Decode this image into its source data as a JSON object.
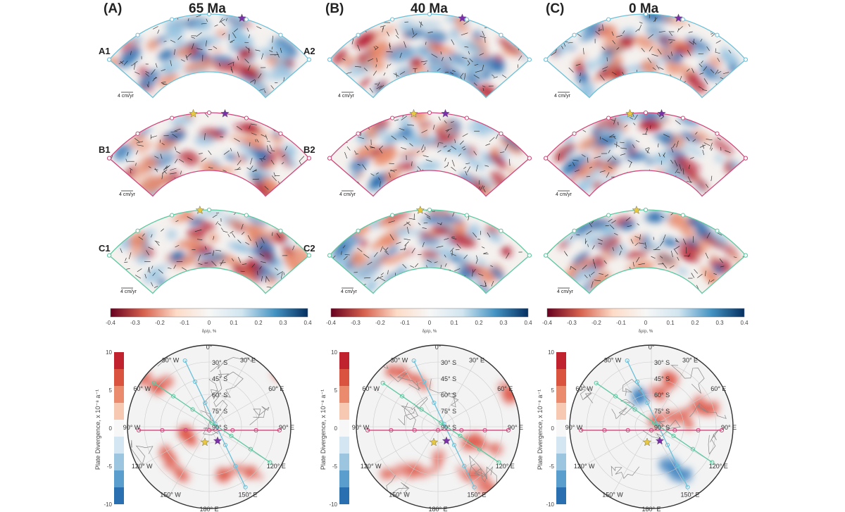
{
  "panels": [
    {
      "letter": "(A)",
      "age": "65 Ma"
    },
    {
      "letter": "(B)",
      "age": "40 Ma"
    },
    {
      "letter": "(C)",
      "age": "0 Ma"
    }
  ],
  "profile_labels": {
    "A1": "A1",
    "A2": "A2",
    "B1": "B1",
    "B2": "B2",
    "C1": "C1",
    "C2": "C2"
  },
  "velocity_scale_label": "4 cm/yr",
  "colors": {
    "marker_row_a": "#6cc0d8",
    "marker_row_b": "#d0487c",
    "marker_row_c": "#5cc8a0",
    "star_purple": "#7b2fa8",
    "star_yellow": "#e8c840"
  },
  "chart_data": [
    {
      "type": "heatmap",
      "description_of_content": "cross-section slices of density anomaly with velocity arrows",
      "colorbar": {
        "label": "δρ/ρ, %",
        "range": [
          -0.4,
          0.4
        ],
        "ticks": [
          "-0.4",
          "-0.3",
          "-0.2",
          "-0.1",
          "0",
          "0.1",
          "0.2",
          "0.3",
          "0.4"
        ],
        "colormap": [
          "#67001f",
          "#d6604d",
          "#fddbc7",
          "#f7f7f7",
          "#d1e5f0",
          "#4393c3",
          "#053061"
        ]
      }
    },
    {
      "type": "heatmap",
      "colorbar": {
        "label": "Plate Divergence, x 10⁻⁸ a⁻¹",
        "range": [
          -10,
          10
        ],
        "ticks": [
          "10",
          "5",
          "0",
          "-5",
          "-10"
        ]
      },
      "longitude_labels": [
        "0°",
        "30° E",
        "60° E",
        "90° E",
        "120° E",
        "150° E",
        "180° E",
        "150° W",
        "120° W",
        "90° W",
        "60° W",
        "30° W"
      ],
      "latitude_labels": [
        "30° S",
        "45° S",
        "60° S",
        "75° S",
        "90° S"
      ]
    }
  ]
}
